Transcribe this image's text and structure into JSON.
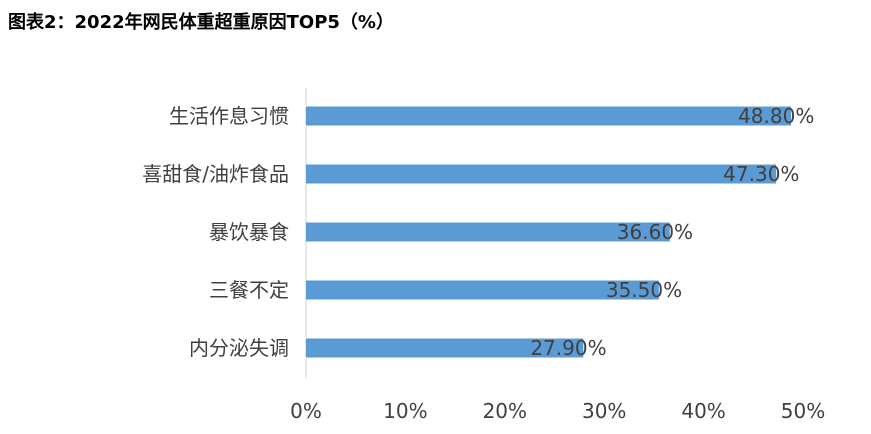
{
  "title": "图表2：2022年网民体重超重原因TOP5（%）",
  "chart_data": {
    "type": "bar",
    "orientation": "horizontal",
    "title": "图表2：2022年网民体重超重原因TOP5（%）",
    "categories": [
      "生活作息习惯",
      "喜甜食/油炸食品",
      "暴饮暴食",
      "三餐不定",
      "内分泌失调"
    ],
    "values": [
      48.8,
      47.3,
      36.6,
      35.5,
      27.9
    ],
    "data_labels": [
      "48.80%",
      "47.30%",
      "36.60%",
      "35.50%",
      "27.90%"
    ],
    "xlim": [
      0,
      50
    ],
    "x_ticks": [
      "0%",
      "10%",
      "20%",
      "30%",
      "40%",
      "50%"
    ],
    "bar_color": "#5B9BD5",
    "grid": false,
    "legend": "none"
  }
}
